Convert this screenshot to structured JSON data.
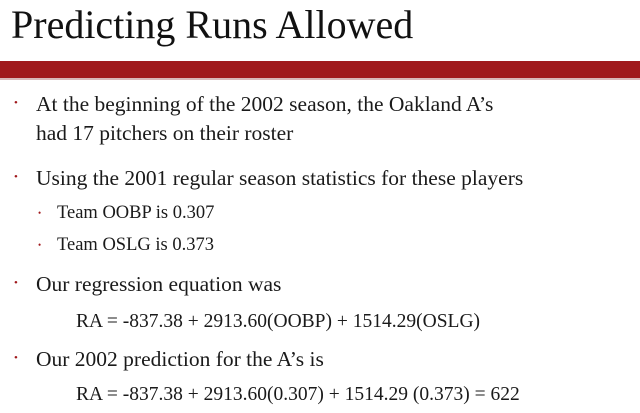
{
  "slide": {
    "title": "Predicting Runs Allowed",
    "accent_color": "#a0191c",
    "bullets": [
      {
        "level": 1,
        "lines": [
          "At the beginning of the 2002 season, the Oakland A’s",
          "had 17 pitchers on their roster"
        ]
      },
      {
        "level": 1,
        "lines": [
          "Using the 2001 regular season statistics for these players"
        ]
      },
      {
        "level": 2,
        "lines": [
          "Team OOBP is 0.307"
        ]
      },
      {
        "level": 2,
        "lines": [
          "Team OSLG is 0.373"
        ]
      },
      {
        "level": 1,
        "lines": [
          "Our regression equation was"
        ]
      },
      {
        "level": 1,
        "lines": [
          "Our 2002 prediction for the A’s is"
        ]
      }
    ],
    "equations": {
      "regression": "RA = -837.38 + 2913.60(OOBP) + 1514.29(OSLG)",
      "prediction": "RA = -837.38 + 2913.60(0.307) + 1514.29 (0.373) = 622"
    }
  }
}
